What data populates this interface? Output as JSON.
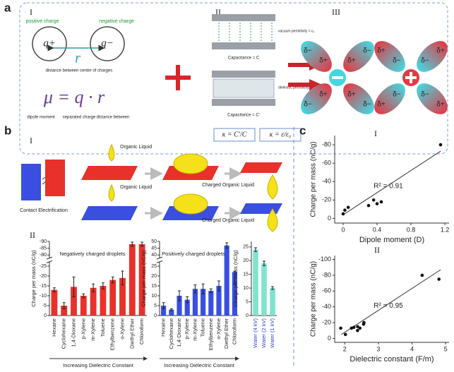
{
  "figure": {
    "panel_labels": [
      "a",
      "b",
      "c"
    ],
    "a": {
      "roman": [
        "I",
        "II",
        "III"
      ],
      "positive_charge": "positive charge",
      "negative_charge": "negative charge",
      "q_plus": "q+",
      "q_minus": "q−",
      "r": "r",
      "distance_label": "distance between center of charges",
      "equation": "μ = q · r",
      "eq_parts": [
        "dipole moment",
        "separated charge",
        "distance between"
      ],
      "vacuum": "vacuum permitivity = ε₀",
      "cap1": "Capacitance = C",
      "dielectric": "dielectric permitivity = ε",
      "cap2": "Capacitance = C'",
      "kappa1": "κ = C'/C",
      "kappa2": "κ = ε/ε₀",
      "delta_minus": "δ−",
      "delta_plus": "δ+"
    },
    "b": {
      "roman": [
        "I",
        "II"
      ],
      "organic_liquid": "Organic Liquid",
      "contact": "Contact Electrification",
      "charged": "Charged Organic Liquid"
    },
    "c": {
      "roman": [
        "I",
        "II"
      ]
    }
  },
  "chart_data": [
    {
      "type": "bar",
      "annotation": "Negatively charged droplets",
      "ylabel": "Charge per mass (nC/g)",
      "xlabel": "Increasing Dielectric Constant",
      "categories": [
        "Hexane",
        "Cyclohexane",
        "1,4-Dioxane",
        "p-Xylene",
        "m-Xylene",
        "Toluene",
        "Ethylbenzene",
        "o-Xylene",
        "Diethyl Ether",
        "Chloroform"
      ],
      "values": [
        -13,
        -5,
        -14.5,
        -10,
        -14,
        -15,
        -18,
        -19,
        -88,
        -88
      ],
      "errors": [
        1,
        1.5,
        5,
        1,
        2,
        1.5,
        1.5,
        3.5,
        1.5,
        1.5
      ],
      "color": "#e8312a",
      "ylim": [
        0,
        -90
      ],
      "ybreak": [
        -27,
        -78
      ],
      "yticks": [
        0,
        -5,
        -10,
        -15,
        -20,
        -25,
        -80,
        -85,
        -90
      ]
    },
    {
      "type": "bar",
      "annotation": "Positively charged droplets",
      "ylabel": "Charge per mass (nC/g)",
      "xlabel": "Increasing Dielectric Constant",
      "categories": [
        "Hexane",
        "Cyclohexane",
        "1,4-Dioxane",
        "p-Xylene",
        "m-Xylene",
        "Toluene",
        "Ethylbenzene",
        "o-Xylene",
        "Diethyl Ether",
        "Chloroform"
      ],
      "values": [
        5,
        3,
        10,
        8,
        13.5,
        13.5,
        12.5,
        15,
        47,
        22
      ],
      "errors": [
        1.5,
        0.5,
        2.5,
        1.5,
        2,
        2.5,
        1,
        2.5,
        2,
        6
      ],
      "color": "#3a4fe0",
      "ylim": [
        0,
        50
      ],
      "ybreak": [
        27,
        38
      ],
      "yticks": [
        0,
        5,
        10,
        15,
        20,
        25,
        40,
        45,
        50
      ]
    },
    {
      "type": "bar",
      "ylabel": "Charge per mass (nC/g)",
      "categories": [
        "Water (4 kV)",
        "Water (2 kV)",
        "Water (1 kV)"
      ],
      "values": [
        24,
        19,
        10
      ],
      "errors": [
        0.7,
        0.8,
        0.5
      ],
      "color": "#7fe3cf",
      "label_color": "#3344cc",
      "ylim": [
        0,
        27
      ],
      "yticks": [
        0,
        5,
        10,
        15,
        20,
        25
      ]
    },
    {
      "type": "scatter",
      "ylabel": "Charge per mass (nC/g)",
      "xlabel": "Dipole moment (D)",
      "annotation": "R² = 0.91",
      "x": [
        0,
        0.02,
        0.06,
        0.3,
        0.36,
        0.4,
        0.45,
        1.15
      ],
      "y": [
        -5,
        -9,
        -12,
        -14,
        -20,
        -16,
        -18,
        -80
      ],
      "fit_x": [
        0,
        1.15
      ],
      "fit_y": [
        -4,
        -73
      ],
      "xlim": [
        -0.1,
        1.25
      ],
      "ylim": [
        5,
        -90
      ],
      "xticks": [
        0,
        0.4,
        0.8,
        1.2
      ],
      "yticks": [
        0,
        -20,
        -40,
        -60,
        -80
      ]
    },
    {
      "type": "scatter",
      "ylabel": "Charge per mass (nC/g)",
      "xlabel": "Dielectric constant (F/m)",
      "annotation": "R² = 0.95",
      "x": [
        1.88,
        2.02,
        2.2,
        2.27,
        2.38,
        2.38,
        2.45,
        2.56,
        2.57,
        4.3,
        4.8
      ],
      "y": [
        -13,
        -5,
        -13,
        -14,
        -10,
        -15,
        -13,
        -18,
        -20,
        -80,
        -75
      ],
      "fit_x": [
        1.9,
        4.85
      ],
      "fit_y": [
        -5,
        -87
      ],
      "xlim": [
        1.7,
        5.1
      ],
      "ylim": [
        5,
        -105
      ],
      "xticks": [
        2,
        3,
        4,
        5
      ],
      "yticks": [
        0,
        -20,
        -40,
        -60,
        -80,
        -100
      ]
    }
  ]
}
